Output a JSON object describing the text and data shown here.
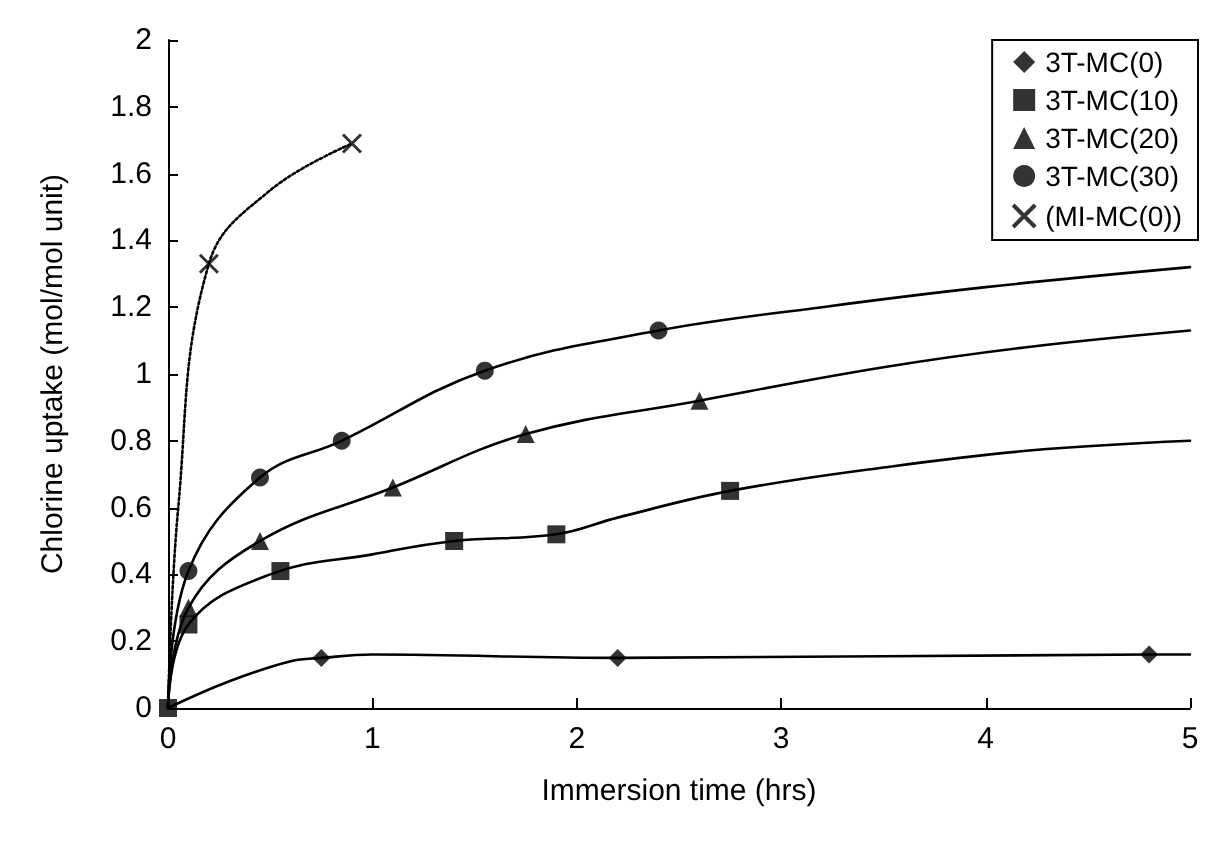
{
  "chart_data": {
    "type": "scatter",
    "xlabel": "Immersion time (hrs)",
    "ylabel": "Chlorine uptake (mol/mol unit)",
    "xlim": [
      0,
      5
    ],
    "xticks": [
      0,
      1,
      2,
      3,
      4,
      5
    ],
    "ylim": [
      0,
      2
    ],
    "yticks": [
      0,
      0.2,
      0.4,
      0.6,
      0.8,
      1,
      1.2,
      1.4,
      1.6,
      1.8,
      2
    ],
    "grid": false,
    "legend": "top right",
    "series": [
      {
        "name": "3T-MC(0)",
        "color": "#000000",
        "marker": "diamond",
        "x": [
          0.75,
          2.2,
          4.8
        ],
        "values": [
          0.15,
          0.15,
          0.16
        ]
      },
      {
        "name": "3T-MC(10)",
        "color": "#000000",
        "marker": "square",
        "x": [
          0,
          0.1,
          0.55,
          1.4,
          1.9,
          2.75
        ],
        "values": [
          0,
          0.25,
          0.41,
          0.5,
          0.52,
          0.65
        ]
      },
      {
        "name": "3T-MC(20)",
        "color": "#000000",
        "marker": "triangle",
        "x": [
          0.1,
          0.45,
          1.1,
          1.75,
          2.6
        ],
        "values": [
          0.3,
          0.5,
          0.66,
          0.82,
          0.92
        ]
      },
      {
        "name": "3T-MC(30)",
        "color": "#000000",
        "marker": "circle",
        "x": [
          0.1,
          0.45,
          0.85,
          1.55,
          2.4
        ],
        "values": [
          0.41,
          0.69,
          0.8,
          1.01,
          1.13
        ]
      },
      {
        "name": "(MI-MC(0))",
        "color": "#000000",
        "marker": "cross",
        "x": [
          0.2,
          0.9
        ],
        "values": [
          1.33,
          1.69
        ]
      },
      {
        "type": "line",
        "line_style": "dotted",
        "color": "#000000",
        "marker": "none",
        "x": [
          0,
          0.05,
          0.2,
          0.5,
          0.9
        ],
        "values": [
          0,
          0.6,
          1.33,
          1.55,
          1.69
        ]
      },
      {
        "type": "line",
        "color": "#000000",
        "marker": "none",
        "line_style": "solid",
        "x": [
          0,
          0.3,
          0.6,
          0.75,
          1,
          2.2,
          4.8,
          5
        ],
        "values": [
          0,
          0.08,
          0.14,
          0.15,
          0.16,
          0.15,
          0.16,
          0.16
        ]
      },
      {
        "type": "line",
        "color": "#000000",
        "marker": "none",
        "line_style": "solid",
        "x": [
          0,
          0.1,
          0.5,
          1,
          1.4,
          1.9,
          2.2,
          2.75,
          3.5,
          4.2,
          5
        ],
        "values": [
          0,
          0.25,
          0.4,
          0.46,
          0.5,
          0.52,
          0.57,
          0.65,
          0.72,
          0.77,
          0.8
        ]
      },
      {
        "type": "line",
        "color": "#000000",
        "marker": "none",
        "line_style": "solid",
        "x": [
          0,
          0.1,
          0.45,
          1.1,
          1.75,
          2.6,
          3.5,
          4.2,
          5
        ],
        "values": [
          0,
          0.3,
          0.5,
          0.66,
          0.82,
          0.92,
          1.02,
          1.08,
          1.13
        ]
      },
      {
        "type": "line",
        "color": "#000000",
        "marker": "none",
        "line_style": "solid",
        "x": [
          0,
          0.1,
          0.45,
          0.85,
          1.55,
          2.4,
          3.2,
          4,
          5
        ],
        "values": [
          0,
          0.41,
          0.69,
          0.8,
          1.01,
          1.13,
          1.2,
          1.26,
          1.32
        ]
      }
    ]
  }
}
